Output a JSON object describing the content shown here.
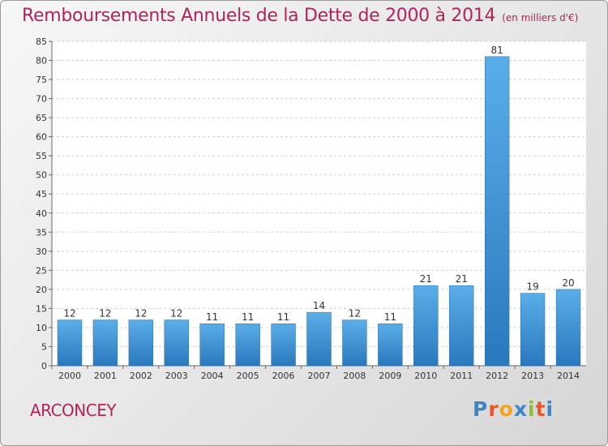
{
  "title": "Remboursements Annuels de la Dette de 2000 à 2014",
  "unit_note": "(en milliers d'€)",
  "place_name": "ARCONCEY",
  "logo": {
    "letters": [
      "P",
      "r",
      "o",
      "x",
      "i",
      "t",
      "i"
    ],
    "colors": [
      "#3b86c8",
      "#e8562a",
      "#f2a51c",
      "#3b86c8",
      "#8fbf2a",
      "#e8562a",
      "#3b86c8"
    ]
  },
  "colors": {
    "bar": "#3d8fd6",
    "bar_light": "#5aaee8",
    "title": "#b0235d"
  },
  "chart_data": {
    "type": "bar",
    "title": "Remboursements Annuels de la Dette de 2000 à 2014",
    "ylabel": "",
    "xlabel": "",
    "ylim": [
      0,
      85
    ],
    "yticks": [
      0,
      5,
      10,
      15,
      20,
      25,
      30,
      35,
      40,
      45,
      50,
      55,
      60,
      65,
      70,
      75,
      80,
      85
    ],
    "grid": true,
    "categories": [
      "2000",
      "2001",
      "2002",
      "2003",
      "2004",
      "2005",
      "2006",
      "2007",
      "2008",
      "2009",
      "2010",
      "2011",
      "2012",
      "2013",
      "2014"
    ],
    "values": [
      12,
      12,
      12,
      12,
      11,
      11,
      11,
      14,
      12,
      11,
      21,
      21,
      81,
      19,
      20
    ]
  }
}
